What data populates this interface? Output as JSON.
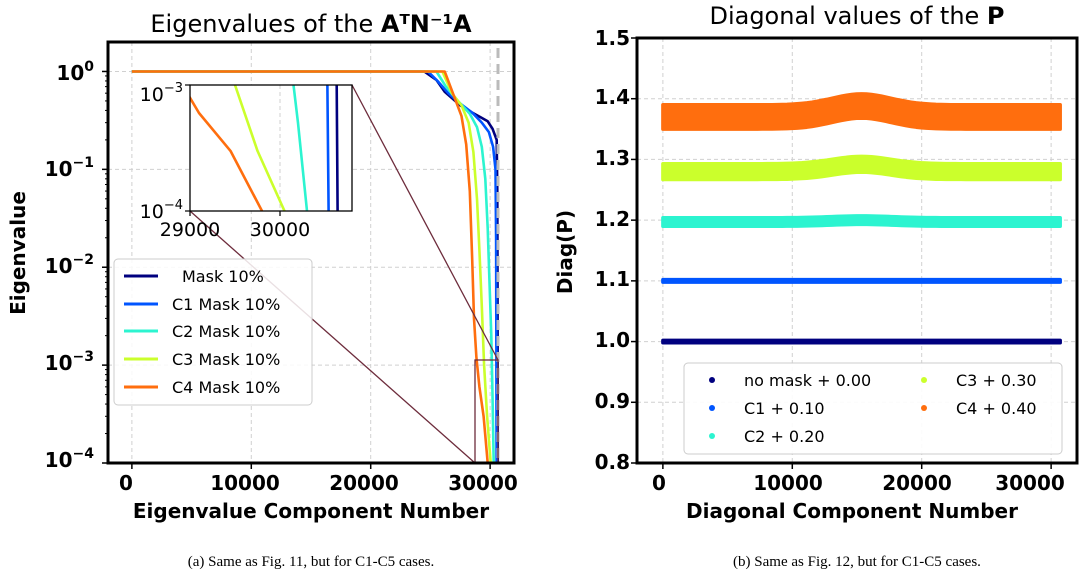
{
  "chart_data": [
    {
      "type": "line",
      "title_prefix": "Eigenvalues of the ",
      "title_math": "AᵀN⁻¹A",
      "xlabel": "Eigenvalue Component Number",
      "ylabel": "Eigenvalue",
      "xlim": [
        -2000,
        32000
      ],
      "ylim": [
        0.0001,
        2
      ],
      "yscale": "log",
      "grid": true,
      "x_ticks": [
        "0",
        "10000",
        "20000",
        "30000"
      ],
      "y_ticks": [
        {
          "base": "10",
          "exp": "0"
        },
        {
          "base": "10",
          "exp": "−1"
        },
        {
          "base": "10",
          "exp": "−2"
        },
        {
          "base": "10",
          "exp": "−3"
        },
        {
          "base": "10",
          "exp": "−4"
        }
      ],
      "legend_position": "left",
      "series": [
        {
          "name": "Mask 10%",
          "color": "#00007f",
          "points": [
            [
              0,
              1.0
            ],
            [
              24500,
              1.0
            ],
            [
              25500,
              0.82
            ],
            [
              26200,
              0.62
            ],
            [
              27500,
              0.45
            ],
            [
              28500,
              0.38
            ],
            [
              29200,
              0.34
            ],
            [
              29800,
              0.31
            ],
            [
              30200,
              0.26
            ],
            [
              30550,
              0.2
            ],
            [
              30600,
              0.06
            ],
            [
              30620,
              0.01
            ],
            [
              30640,
              0.0001
            ]
          ]
        },
        {
          "name": "C1 Mask 10%",
          "color": "#0055ff",
          "points": [
            [
              0,
              1.0
            ],
            [
              24800,
              1.0
            ],
            [
              25600,
              0.8
            ],
            [
              26500,
              0.6
            ],
            [
              27500,
              0.47
            ],
            [
              28500,
              0.38
            ],
            [
              29300,
              0.3
            ],
            [
              29900,
              0.24
            ],
            [
              30250,
              0.17
            ],
            [
              30450,
              0.1
            ],
            [
              30500,
              0.02
            ],
            [
              30520,
              0.003
            ],
            [
              30540,
              0.0001
            ]
          ]
        },
        {
          "name": "C2 Mask 10%",
          "color": "#2cf4d0",
          "points": [
            [
              0,
              1.0
            ],
            [
              25500,
              1.0
            ],
            [
              26300,
              0.7
            ],
            [
              27300,
              0.5
            ],
            [
              28300,
              0.37
            ],
            [
              28900,
              0.27
            ],
            [
              29300,
              0.17
            ],
            [
              29600,
              0.08
            ],
            [
              29800,
              0.025
            ],
            [
              29950,
              0.007
            ],
            [
              30100,
              0.002
            ],
            [
              30200,
              0.0005
            ],
            [
              30300,
              0.0001
            ]
          ]
        },
        {
          "name": "C3 Mask 10%",
          "color": "#cbff2c",
          "points": [
            [
              0,
              1.0
            ],
            [
              26000,
              1.0
            ],
            [
              26800,
              0.6
            ],
            [
              27600,
              0.45
            ],
            [
              28200,
              0.3
            ],
            [
              28600,
              0.15
            ],
            [
              28900,
              0.05
            ],
            [
              29100,
              0.015
            ],
            [
              29300,
              0.004
            ],
            [
              29500,
              0.001
            ],
            [
              29750,
              0.0003
            ],
            [
              30050,
              0.0001
            ]
          ]
        },
        {
          "name": "C4 Mask 10%",
          "color": "#ff6e0e",
          "points": [
            [
              0,
              1.0
            ],
            [
              26200,
              1.0
            ],
            [
              27000,
              0.55
            ],
            [
              27600,
              0.35
            ],
            [
              28000,
              0.18
            ],
            [
              28300,
              0.06
            ],
            [
              28500,
              0.012
            ],
            [
              28650,
              0.003
            ],
            [
              28850,
              0.0012
            ],
            [
              29100,
              0.0006
            ],
            [
              29450,
              0.0003
            ],
            [
              29800,
              0.0001
            ]
          ]
        }
      ],
      "inset": {
        "xlim": [
          29000,
          30800
        ],
        "ylim": [
          0.0001,
          0.001
        ],
        "x_ticks": [
          "29000",
          "30000"
        ],
        "y_ticks": [
          {
            "base": "10",
            "exp": "−3"
          },
          {
            "base": "10",
            "exp": "−4"
          }
        ]
      }
    },
    {
      "type": "scatter",
      "title_prefix": "Diagonal values of the ",
      "title_math": "P",
      "xlabel": "Diagonal Component Number",
      "ylabel": "Diag(P)",
      "xlim": [
        -2000,
        32000
      ],
      "ylim": [
        0.8,
        1.5
      ],
      "grid": true,
      "x_ticks": [
        "0",
        "10000",
        "20000",
        "30000"
      ],
      "y_ticks": [
        "1.5",
        "1.4",
        "1.3",
        "1.2",
        "1.1",
        "1.0",
        "0.9",
        "0.8"
      ],
      "legend_position": "bottom-right",
      "x_range": [
        0,
        30700
      ],
      "series": [
        {
          "name": "no mask +  0.00",
          "color": "#00007f",
          "center": 1.0,
          "band_half_width": 0.002,
          "bump": 0.0
        },
        {
          "name": "C1 +  0.10",
          "color": "#0055ff",
          "center": 1.1,
          "band_half_width": 0.002,
          "bump": 0.0
        },
        {
          "name": "C2 +  0.20",
          "color": "#2cf4d0",
          "center": 1.197,
          "band_half_width": 0.007,
          "bump": 0.003
        },
        {
          "name": "C3 +  0.30",
          "color": "#cbff2c",
          "center": 1.28,
          "band_half_width": 0.013,
          "bump": 0.012
        },
        {
          "name": "C4 +  0.40",
          "color": "#ff6e0e",
          "center": 1.37,
          "band_half_width": 0.02,
          "bump": 0.018
        }
      ]
    }
  ],
  "captions": {
    "left": "(a)  Same as Fig. 11, but for C1-C5 cases.",
    "right": "(b)  Same as Fig. 12, but for C1-C5 cases."
  }
}
